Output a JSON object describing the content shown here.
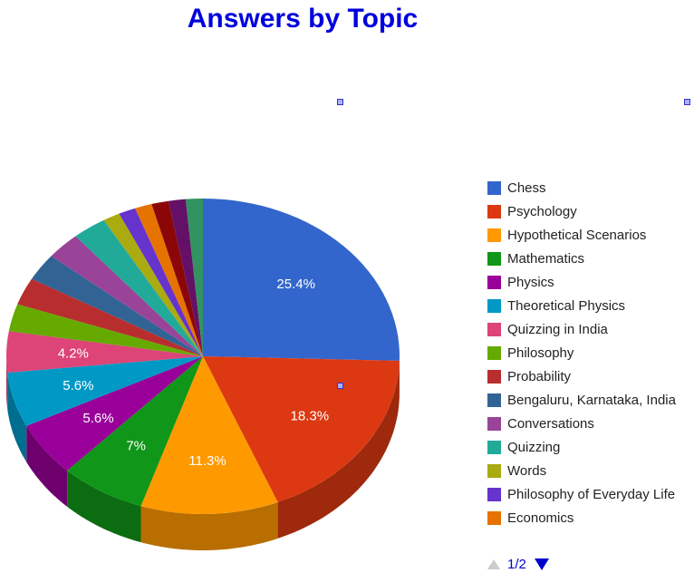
{
  "chart_data": {
    "type": "pie",
    "title": "Answers by Topic",
    "series": [
      {
        "name": "Chess",
        "value": 25.4,
        "color": "#3366cc",
        "label": "25.4%"
      },
      {
        "name": "Psychology",
        "value": 18.3,
        "color": "#dc3912",
        "label": "18.3%"
      },
      {
        "name": "Hypothetical Scenarios",
        "value": 11.3,
        "color": "#ff9900",
        "label": "11.3%"
      },
      {
        "name": "Mathematics",
        "value": 7.0,
        "color": "#109618",
        "label": "7%"
      },
      {
        "name": "Physics",
        "value": 5.6,
        "color": "#990099",
        "label": "5.6%"
      },
      {
        "name": "Theoretical Physics",
        "value": 5.6,
        "color": "#0099c6",
        "label": "5.6%"
      },
      {
        "name": "Quizzing in India",
        "value": 4.2,
        "color": "#dd4477",
        "label": "4.2%"
      },
      {
        "name": "Philosophy",
        "value": 2.8,
        "color": "#66aa00",
        "label": ""
      },
      {
        "name": "Probability",
        "value": 2.8,
        "color": "#b82e2e",
        "label": ""
      },
      {
        "name": "Bengaluru, Karnataka, India",
        "value": 2.8,
        "color": "#316395",
        "label": ""
      },
      {
        "name": "Conversations",
        "value": 2.8,
        "color": "#994499",
        "label": ""
      },
      {
        "name": "Quizzing",
        "value": 2.8,
        "color": "#22aa99",
        "label": ""
      },
      {
        "name": "Words",
        "value": 1.4,
        "color": "#aaaa11",
        "label": ""
      },
      {
        "name": "Philosophy of Everyday Life",
        "value": 1.4,
        "color": "#6633cc",
        "label": ""
      },
      {
        "name": "Economics",
        "value": 1.4,
        "color": "#e67300",
        "label": ""
      },
      {
        "name": "",
        "value": 1.4,
        "color": "#8b0707",
        "label": ""
      },
      {
        "name": "",
        "value": 1.4,
        "color": "#651067",
        "label": ""
      },
      {
        "name": "",
        "value": 1.4,
        "color": "#329262",
        "label": ""
      }
    ],
    "legend_position": "right"
  },
  "legend": {
    "page": "1/2"
  }
}
